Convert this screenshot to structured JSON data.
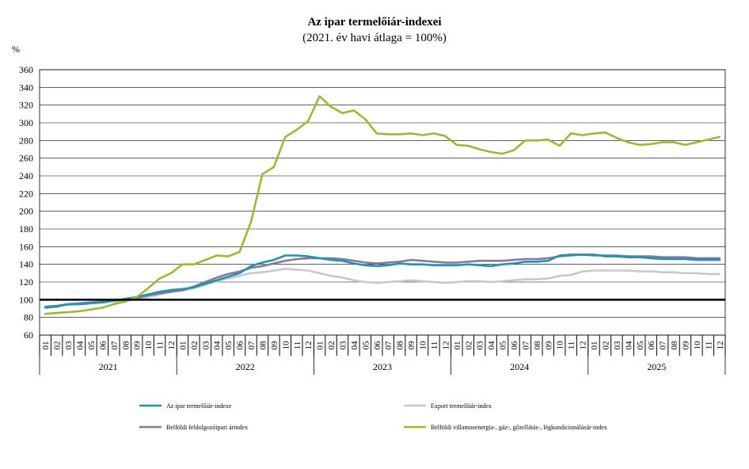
{
  "chart_data": {
    "type": "line",
    "title": "Az ipar termelőiár-indexei",
    "subtitle": "(2021. év havi átlaga = 100%)",
    "ylabel": "%",
    "ylim": [
      60,
      360
    ],
    "yticks": [
      60,
      80,
      100,
      120,
      140,
      160,
      180,
      200,
      220,
      240,
      260,
      280,
      300,
      320,
      340,
      360
    ],
    "grid": true,
    "legend_position": "bottom",
    "reference_line": 100,
    "years": [
      "2021",
      "2022",
      "2023",
      "2024",
      "2025"
    ],
    "months": [
      "01",
      "02",
      "03",
      "04",
      "05",
      "06",
      "07",
      "08",
      "09",
      "10",
      "11",
      "12"
    ],
    "series": [
      {
        "name": "Az ipar termelőiár-indexe",
        "color": "#1696b8",
        "values": [
          92,
          93,
          95,
          95,
          96,
          97,
          99,
          101,
          103,
          106,
          109,
          111,
          112,
          114,
          118,
          122,
          126,
          130,
          138,
          142,
          145,
          150,
          150,
          149,
          147,
          145,
          144,
          141,
          139,
          138,
          139,
          141,
          140,
          140,
          139,
          139,
          139,
          140,
          139,
          138,
          140,
          141,
          143,
          143,
          144,
          150,
          151,
          151,
          151,
          149,
          149,
          148,
          148,
          147,
          146,
          146,
          146,
          145,
          145,
          145
        ]
      },
      {
        "name": "Export termelőiár-index",
        "color": "#c8c8c8",
        "values": [
          92,
          93,
          94,
          95,
          96,
          97,
          98,
          99,
          101,
          103,
          106,
          109,
          110,
          113,
          117,
          121,
          124,
          127,
          130,
          131,
          133,
          135,
          134,
          133,
          130,
          127,
          125,
          122,
          120,
          119,
          120,
          121,
          122,
          121,
          120,
          119,
          120,
          121,
          121,
          120,
          121,
          122,
          123,
          123,
          124,
          127,
          128,
          132,
          133,
          133,
          133,
          133,
          132,
          132,
          131,
          131,
          130,
          130,
          129,
          129
        ]
      },
      {
        "name": "Belföldi feldolgozóipari árindex",
        "color": "#8a7896",
        "values": [
          91,
          92,
          95,
          96,
          97,
          98,
          99,
          100,
          102,
          105,
          107,
          109,
          111,
          115,
          120,
          125,
          129,
          132,
          136,
          138,
          141,
          144,
          146,
          147,
          147,
          147,
          146,
          144,
          142,
          141,
          142,
          143,
          145,
          144,
          143,
          142,
          142,
          143,
          144,
          144,
          144,
          145,
          146,
          146,
          147,
          149,
          150,
          151,
          150,
          150,
          150,
          149,
          149,
          149,
          148,
          148,
          148,
          147,
          147,
          147
        ]
      },
      {
        "name": "Belföldi villamosenergia-, gáz-, gőzellátás-, légkondicionálásár-index",
        "color": "#9bbb2a",
        "values": [
          84,
          85,
          86,
          87,
          89,
          91,
          95,
          98,
          103,
          113,
          124,
          130,
          140,
          140,
          145,
          150,
          149,
          154,
          188,
          242,
          250,
          284,
          292,
          302,
          330,
          318,
          311,
          314,
          304,
          288,
          287,
          287,
          288,
          286,
          288,
          285,
          275,
          274,
          270,
          267,
          265,
          269,
          280,
          280,
          281,
          274,
          288,
          286,
          288,
          289,
          283,
          278,
          275,
          276,
          278,
          278,
          275,
          278,
          281,
          284
        ]
      }
    ]
  }
}
